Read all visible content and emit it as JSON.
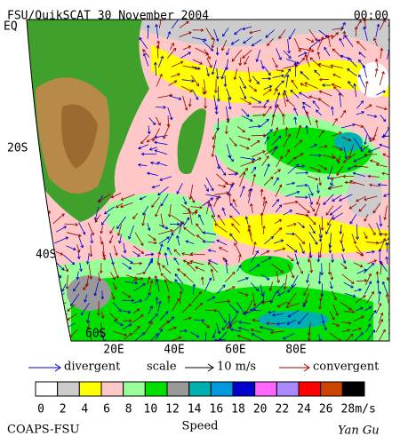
{
  "header": {
    "title": "FSU/QuikSCAT 30 November 2004",
    "time": "00:00"
  },
  "map": {
    "lat_labels": [
      "EQ",
      "20S",
      "40S",
      "60S"
    ],
    "lon_labels": [
      "20E",
      "40E",
      "60E",
      "80E"
    ]
  },
  "legend": {
    "divergent": "divergent",
    "scale": "scale",
    "scale_value": "10 m/s",
    "convergent": "convergent"
  },
  "colorbar": {
    "ticks": [
      0,
      2,
      4,
      6,
      8,
      10,
      12,
      14,
      16,
      18,
      20,
      22,
      24,
      26,
      28
    ],
    "unit": "m/s",
    "title": "Speed",
    "colors": [
      "#ffffff",
      "#cccccc",
      "#ffff00",
      "#ffc8c8",
      "#99ff99",
      "#00e000",
      "#999999",
      "#00b0b0",
      "#0099dd",
      "#0000cc",
      "#ff66ff",
      "#aa88ff",
      "#ff0000",
      "#cc4400",
      "#000000"
    ]
  },
  "footer": {
    "left": "COAPS-FSU",
    "right": "Yan Gu"
  }
}
